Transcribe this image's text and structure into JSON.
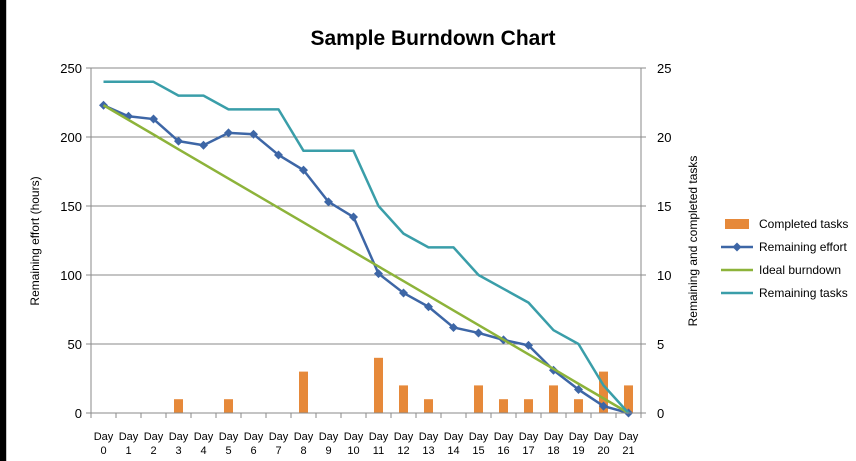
{
  "chart_data": {
    "type": "bar+line",
    "title": "Sample Burndown Chart",
    "categories": [
      "Day 0",
      "Day 1",
      "Day 2",
      "Day 3",
      "Day 4",
      "Day 5",
      "Day 6",
      "Day 7",
      "Day 8",
      "Day 9",
      "Day 10",
      "Day 11",
      "Day 12",
      "Day 13",
      "Day 14",
      "Day 15",
      "Day 16",
      "Day 17",
      "Day 18",
      "Day 19",
      "Day 20",
      "Day 21"
    ],
    "ylabel_left": "Remaining effort (hours)",
    "ylabel_right": "Remaining and completed tasks",
    "ylim_left": [
      0,
      250
    ],
    "ylim_right": [
      0,
      25
    ],
    "yticks_left": [
      0,
      50,
      100,
      150,
      200,
      250
    ],
    "yticks_right": [
      0,
      5,
      10,
      15,
      20,
      25
    ],
    "grid": true,
    "legend_position": "right",
    "series": [
      {
        "name": "Completed tasks",
        "kind": "bar",
        "axis": "right",
        "color": "#e6893a",
        "values": [
          0,
          0,
          0,
          1,
          0,
          1,
          0,
          0,
          3,
          0,
          0,
          4,
          2,
          1,
          0,
          2,
          1,
          1,
          2,
          1,
          3,
          2
        ]
      },
      {
        "name": "Remaining effort",
        "kind": "line",
        "marker": "diamond",
        "axis": "left",
        "color": "#3d66a6",
        "values": [
          223,
          215,
          213,
          197,
          194,
          203,
          202,
          187,
          176,
          153,
          142,
          101,
          87,
          77,
          62,
          58,
          53,
          49,
          31,
          17,
          5,
          0
        ]
      },
      {
        "name": "Ideal burndown",
        "kind": "line",
        "axis": "left",
        "color": "#8db33a",
        "values": [
          223,
          212.4,
          201.8,
          191.1,
          180.5,
          169.9,
          159.3,
          148.7,
          138.1,
          127.4,
          116.8,
          106.2,
          95.6,
          85.0,
          74.3,
          63.7,
          53.1,
          42.5,
          31.9,
          21.2,
          10.6,
          0
        ]
      },
      {
        "name": "Remaining tasks",
        "kind": "line",
        "axis": "right",
        "color": "#3a9ea9",
        "values": [
          24,
          24,
          24,
          23,
          23,
          22,
          22,
          22,
          19,
          19,
          19,
          15,
          13,
          12,
          12,
          10,
          9,
          8,
          6,
          5,
          2,
          0
        ]
      }
    ]
  }
}
